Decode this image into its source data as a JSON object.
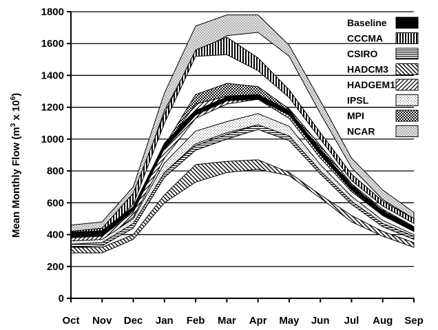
{
  "chart_data": {
    "type": "area",
    "categories": [
      "Oct",
      "Nov",
      "Dec",
      "Jan",
      "Feb",
      "Mar",
      "Apr",
      "May",
      "Jun",
      "Jul",
      "Aug",
      "Sep"
    ],
    "ylabel_main": "Mean Monthly Flow (m",
    "ylabel_sup1": "3",
    "ylabel_mid": " x 10",
    "ylabel_sup2": "6",
    "ylabel_end": ")",
    "xlabel": "",
    "ylim": [
      0,
      1800
    ],
    "yticks": [
      0,
      200,
      400,
      600,
      800,
      1000,
      1200,
      1400,
      1600,
      1800
    ],
    "grid": true,
    "legend_position": "top-right",
    "series": [
      {
        "name": "NCAR",
        "pattern": "dots-light",
        "lower": [
          420,
          440,
          620,
          1180,
          1540,
          1650,
          1670,
          1520,
          1160,
          820,
          620,
          500
        ],
        "upper": [
          460,
          480,
          700,
          1290,
          1710,
          1780,
          1780,
          1590,
          1240,
          880,
          680,
          540
        ]
      },
      {
        "name": "CCCMA",
        "pattern": "vlines",
        "lower": [
          380,
          400,
          590,
          1100,
          1520,
          1530,
          1430,
          1260,
          1000,
          740,
          580,
          470
        ],
        "upper": [
          420,
          440,
          660,
          1160,
          1560,
          1640,
          1510,
          1310,
          1040,
          780,
          610,
          500
        ]
      },
      {
        "name": "MPI",
        "pattern": "checker",
        "lower": [
          360,
          380,
          530,
          900,
          1190,
          1260,
          1260,
          1140,
          900,
          680,
          520,
          420
        ],
        "upper": [
          400,
          410,
          570,
          960,
          1280,
          1350,
          1330,
          1190,
          960,
          720,
          560,
          450
        ]
      },
      {
        "name": "HADGEM1",
        "pattern": "diag-fwd",
        "lower": [
          350,
          360,
          510,
          880,
          1130,
          1220,
          1250,
          1130,
          880,
          670,
          520,
          420
        ],
        "upper": [
          380,
          390,
          540,
          950,
          1220,
          1270,
          1280,
          1170,
          940,
          700,
          550,
          440
        ]
      },
      {
        "name": "Baseline",
        "pattern": "solid",
        "lower": [
          385,
          395,
          550,
          940,
          1150,
          1240,
          1250,
          1150,
          900,
          680,
          520,
          420
        ],
        "upper": [
          415,
          425,
          575,
          975,
          1180,
          1265,
          1280,
          1180,
          930,
          710,
          550,
          450
        ]
      },
      {
        "name": "IPSL",
        "pattern": "dots-fine",
        "lower": [
          330,
          340,
          460,
          790,
          970,
          1040,
          1090,
          1020,
          800,
          600,
          460,
          380
        ],
        "upper": [
          360,
          370,
          500,
          850,
          1050,
          1110,
          1160,
          1080,
          840,
          640,
          490,
          400
        ]
      },
      {
        "name": "CSIRO",
        "pattern": "hlines",
        "lower": [
          320,
          330,
          440,
          760,
          930,
          1000,
          1060,
          990,
          780,
          590,
          450,
          370
        ],
        "upper": [
          340,
          350,
          470,
          790,
          960,
          1030,
          1090,
          1020,
          800,
          610,
          470,
          390
        ]
      },
      {
        "name": "HADCM3",
        "pattern": "diag-back",
        "lower": [
          285,
          285,
          370,
          600,
          730,
          790,
          810,
          770,
          630,
          480,
          390,
          320
        ],
        "upper": [
          320,
          320,
          400,
          650,
          840,
          860,
          870,
          790,
          650,
          520,
          420,
          350
        ]
      }
    ],
    "legend_order": [
      "Baseline",
      "CCCMA",
      "CSIRO",
      "HADCM3",
      "HADGEM1",
      "IPSL",
      "MPI",
      "NCAR"
    ]
  }
}
